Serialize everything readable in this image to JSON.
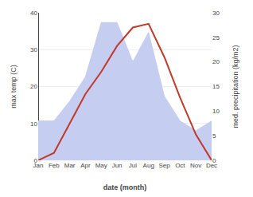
{
  "chart_data": {
    "type": "line",
    "categories": [
      "Jan",
      "Feb",
      "Mar",
      "Apr",
      "May",
      "Jun",
      "Jul",
      "Aug",
      "Sep",
      "Oct",
      "Nov",
      "Dec"
    ],
    "series": [
      {
        "type": "area",
        "color": "#c5cdf0",
        "axis": "y2",
        "values": [
          8,
          8,
          12,
          17,
          28,
          28,
          20,
          26,
          13,
          8,
          6,
          8
        ]
      },
      {
        "type": "line",
        "color": "#c0392b",
        "axis": "y",
        "values": [
          0,
          2,
          10,
          18,
          24,
          31,
          36,
          37,
          28,
          17,
          7,
          0
        ]
      }
    ],
    "xlabel": "date (month)",
    "ylabel": "max temp (C)",
    "y2label": "med. precipitation (kg/m2)",
    "ylim": [
      0,
      40
    ],
    "yticks": [
      0,
      10,
      20,
      30,
      40
    ],
    "y2lim": [
      0,
      30
    ],
    "y2ticks": [
      0,
      5,
      10,
      15,
      20,
      25,
      30
    ],
    "grid": true
  }
}
